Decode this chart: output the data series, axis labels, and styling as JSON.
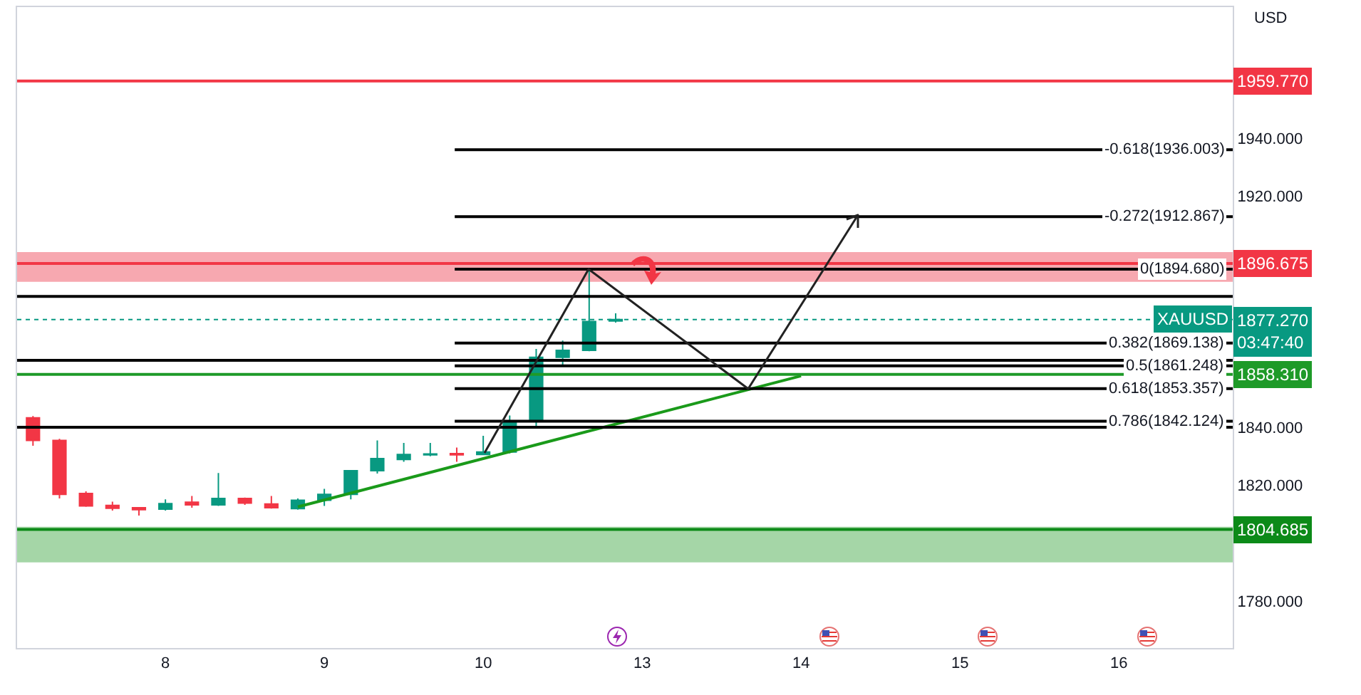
{
  "chart_data": {
    "type": "candlestick",
    "ylabel": "USD",
    "categories": [
      null,
      null,
      null,
      null,
      null,
      "8",
      null,
      null,
      null,
      null,
      null,
      "9",
      null,
      null,
      null,
      null,
      null,
      "10",
      null,
      null,
      null,
      null,
      null,
      "13",
      null,
      null,
      null,
      null,
      null,
      "14",
      null,
      null,
      null,
      null,
      null,
      "15",
      null,
      null,
      null,
      null,
      null,
      "16",
      null,
      null,
      null,
      null
    ],
    "ohlc": [
      [
        1843.3,
        1843.9,
        1833.6,
        1835.5
      ],
      [
        1835.5,
        1836.0,
        1815.4,
        1816.8
      ],
      [
        1817.1,
        1817.9,
        1812.5,
        1812.8
      ],
      [
        1813.0,
        1814.3,
        1811.2,
        1812.0
      ],
      [
        1812.2,
        1812.4,
        1809.5,
        1811.5
      ],
      [
        1811.7,
        1815.1,
        1811.2,
        1813.6
      ],
      [
        1814.1,
        1816.3,
        1812.2,
        1813.2
      ],
      [
        1813.2,
        1824.2,
        1812.8,
        1815.4
      ],
      [
        1815.4,
        1815.7,
        1813.2,
        1813.8
      ],
      [
        1813.5,
        1816.3,
        1811.9,
        1812.2
      ],
      [
        1811.9,
        1815.4,
        1811.5,
        1814.8
      ],
      [
        1814.8,
        1818.7,
        1812.8,
        1816.8
      ],
      [
        1816.8,
        1825.0,
        1815.1,
        1825.0
      ],
      [
        1825.0,
        1835.5,
        1824.0,
        1829.2
      ],
      [
        1828.9,
        1834.6,
        1828.1,
        1830.6
      ],
      [
        1830.5,
        1834.6,
        1830.0,
        1830.8
      ],
      [
        1830.9,
        1833.0,
        1828.1,
        1830.5
      ],
      [
        1830.6,
        1837.1,
        1830.4,
        1831.5
      ],
      [
        1831.5,
        1844.1,
        1831.0,
        1842.0
      ],
      [
        1842.0,
        1867.1,
        1839.7,
        1864.2
      ],
      [
        1864.2,
        1870.0,
        1861.1,
        1866.6
      ],
      [
        1866.6,
        1894.7,
        1866.3,
        1876.6
      ],
      [
        1876.8,
        1879.4,
        1876.2,
        1877.27
      ],
      null,
      null,
      null,
      null,
      null,
      null,
      null,
      null,
      null,
      null,
      null,
      null,
      null,
      null,
      null,
      null,
      null,
      null,
      null,
      null,
      null,
      null,
      null
    ],
    "colors": [
      "#f23645",
      "#f23645",
      "#f23645",
      "#f23645",
      "#f23645",
      "#089981",
      "#f23645",
      "#089981",
      "#f23645",
      "#f23645",
      "#089981",
      "#089981",
      "#089981",
      "#089981",
      "#089981",
      "#089981",
      "#f23645",
      "#089981",
      "#089981",
      "#089981",
      "#089981",
      "#089981",
      "#089981",
      null,
      null,
      null,
      null,
      null,
      null,
      null,
      null,
      null,
      null,
      null,
      null,
      null,
      null,
      null,
      null,
      null,
      null,
      null,
      null,
      null,
      null,
      null
    ],
    "series": [
      {
        "type": "line",
        "color": "#1a9a1a",
        "values": [
          null,
          null,
          null,
          null,
          null,
          null,
          null,
          null,
          null,
          null,
          1812.5,
          null,
          null,
          null,
          null,
          null,
          null,
          null,
          null,
          null,
          null,
          null,
          null,
          null,
          null,
          null,
          null,
          null,
          null,
          1857.8,
          null,
          null,
          null,
          null,
          null,
          null,
          null,
          null,
          null,
          null,
          null,
          null,
          null,
          null,
          null,
          null
        ]
      }
    ],
    "ylim": [
      1763.7,
      1985.3
    ],
    "yticks": [
      {
        "value": 1780,
        "label": "1780.000"
      },
      {
        "value": 1820,
        "label": "1820.000"
      },
      {
        "value": 1840,
        "label": "1840.000"
      },
      {
        "value": 1920,
        "label": "1920.000"
      },
      {
        "value": 1940,
        "label": "1940.000"
      }
    ],
    "bands": [
      {
        "axis": "y",
        "from": 1890.3,
        "to": 1900.6,
        "color": "#f7a8b0"
      },
      {
        "axis": "y",
        "from": 1793.3,
        "to": 1805.6,
        "color": "#a5d6a7"
      }
    ],
    "ref_lines": [
      {
        "axis": "y",
        "value": 1959.77,
        "label": "1959.770",
        "color": "#f23645"
      },
      {
        "axis": "y",
        "value": 1896.675,
        "label": "1896.675",
        "color": "#f23645"
      },
      {
        "axis": "y",
        "value": 1858.31,
        "label": "1858.310",
        "color": "#1e9a28"
      },
      {
        "axis": "y",
        "value": 1804.685,
        "label": "1804.685",
        "color": "#0c8a18"
      },
      {
        "axis": "y",
        "value": 1877.27,
        "label": "1877.270\n03:47:40",
        "color": "#089981",
        "line_style": "dotted"
      },
      {
        "axis": "y",
        "value": 1885.3
      },
      {
        "axis": "y",
        "value": 1863.2
      },
      {
        "axis": "y",
        "value": 1840.0
      },
      {
        "axis": "y",
        "value": 1936.003,
        "label": "-0.618(1936.003)"
      },
      {
        "axis": "y",
        "value": 1912.867,
        "label": "-0.272(1912.867)"
      },
      {
        "axis": "y",
        "value": 1894.68,
        "label": "0(1894.680)"
      },
      {
        "axis": "y",
        "value": 1869.138,
        "label": "0.382(1869.138)"
      },
      {
        "axis": "y",
        "value": 1861.248,
        "label": "0.5(1861.248)"
      },
      {
        "axis": "y",
        "value": 1853.357,
        "label": "0.618(1853.357)"
      },
      {
        "axis": "y",
        "value": 1842.124,
        "label": "0.786(1842.124)"
      }
    ],
    "annotations": [
      {
        "text": "XAUUSD",
        "y": 1877.27
      }
    ]
  }
}
